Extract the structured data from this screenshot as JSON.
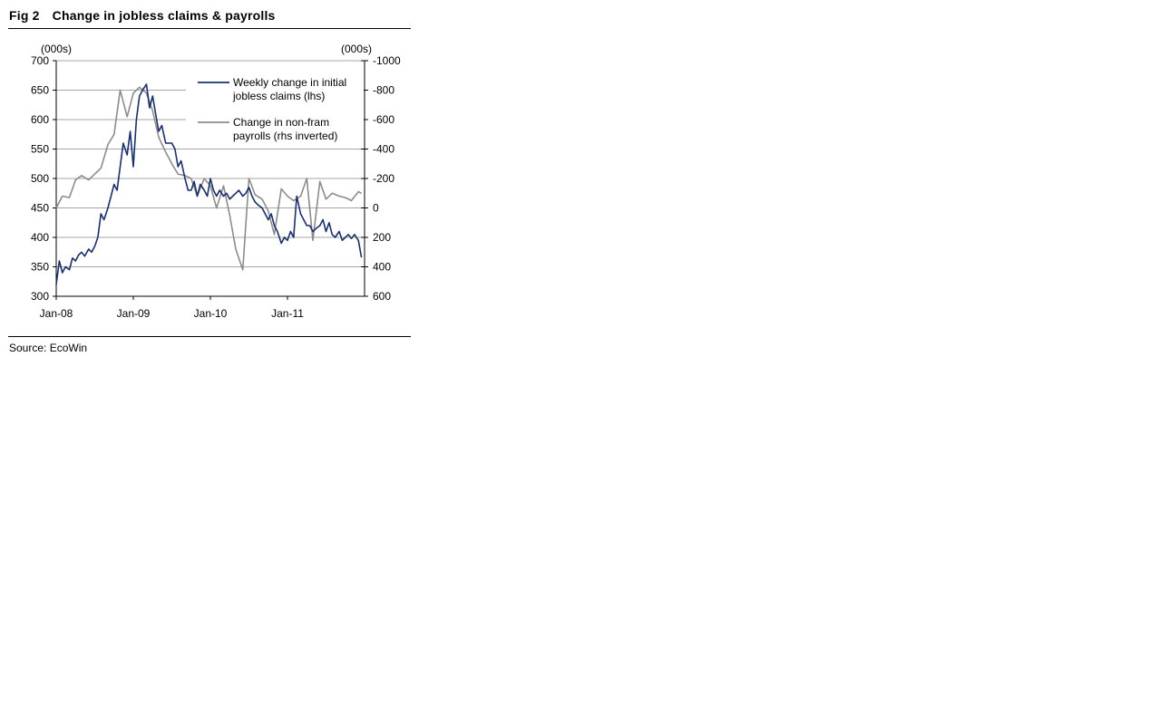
{
  "figure": {
    "number": "Fig 2",
    "title": "Change in jobless claims & payrolls",
    "source": "Source: EcoWin"
  },
  "chart_data": {
    "type": "line",
    "title": "Change in jobless claims & payrolls",
    "left_axis": {
      "unit": "(000s)",
      "min": 300,
      "max": 700,
      "ticks": [
        300,
        350,
        400,
        450,
        500,
        550,
        600,
        650,
        700
      ]
    },
    "right_axis": {
      "unit": "(000s)",
      "min": -1000,
      "max": 600,
      "inverted": true,
      "ticks": [
        -1000,
        -800,
        -600,
        -400,
        -200,
        0,
        200,
        400,
        600
      ]
    },
    "x_axis": {
      "ticks": [
        "Jan-08",
        "Jan-09",
        "Jan-10",
        "Jan-11"
      ],
      "start": "2008-01",
      "end": "2011-12"
    },
    "grid": "horizontal",
    "legend_position": "top-right",
    "series": [
      {
        "name": "Weekly change in initial jobless claims (lhs)",
        "axis": "left",
        "color": "#1a2f6b",
        "x": [
          2008.0,
          2008.04,
          2008.08,
          2008.12,
          2008.17,
          2008.21,
          2008.25,
          2008.29,
          2008.33,
          2008.37,
          2008.42,
          2008.46,
          2008.5,
          2008.54,
          2008.58,
          2008.62,
          2008.67,
          2008.71,
          2008.75,
          2008.79,
          2008.83,
          2008.87,
          2008.92,
          2008.96,
          2009.0,
          2009.04,
          2009.08,
          2009.12,
          2009.17,
          2009.21,
          2009.25,
          2009.29,
          2009.33,
          2009.37,
          2009.42,
          2009.46,
          2009.5,
          2009.54,
          2009.58,
          2009.62,
          2009.67,
          2009.71,
          2009.75,
          2009.79,
          2009.83,
          2009.87,
          2009.92,
          2009.96,
          2010.0,
          2010.04,
          2010.08,
          2010.12,
          2010.17,
          2010.21,
          2010.25,
          2010.29,
          2010.33,
          2010.37,
          2010.42,
          2010.46,
          2010.5,
          2010.54,
          2010.58,
          2010.62,
          2010.67,
          2010.71,
          2010.75,
          2010.79,
          2010.83,
          2010.87,
          2010.92,
          2010.96,
          2011.0,
          2011.04,
          2011.08,
          2011.12,
          2011.17,
          2011.21,
          2011.25,
          2011.29,
          2011.33,
          2011.37,
          2011.42,
          2011.46,
          2011.5,
          2011.54,
          2011.58,
          2011.62,
          2011.67,
          2011.71,
          2011.75,
          2011.79,
          2011.83,
          2011.87,
          2011.92,
          2011.96
        ],
        "values": [
          320,
          360,
          340,
          350,
          345,
          365,
          360,
          370,
          375,
          368,
          380,
          375,
          385,
          400,
          440,
          430,
          450,
          470,
          490,
          480,
          520,
          560,
          540,
          580,
          520,
          600,
          640,
          650,
          660,
          620,
          640,
          610,
          580,
          590,
          560,
          560,
          560,
          550,
          520,
          530,
          500,
          480,
          480,
          495,
          470,
          490,
          480,
          470,
          500,
          480,
          470,
          480,
          470,
          475,
          465,
          470,
          475,
          480,
          470,
          475,
          485,
          470,
          460,
          455,
          450,
          440,
          430,
          440,
          420,
          410,
          390,
          400,
          395,
          410,
          400,
          470,
          440,
          430,
          420,
          420,
          410,
          415,
          420,
          430,
          410,
          425,
          405,
          400,
          410,
          395,
          400,
          405,
          398,
          405,
          395,
          366
        ]
      },
      {
        "name": "Change in non-fram payrolls (rhs inverted)",
        "axis": "right",
        "color": "#8c8c8c",
        "x": [
          2008.0,
          2008.08,
          2008.17,
          2008.25,
          2008.33,
          2008.42,
          2008.5,
          2008.58,
          2008.67,
          2008.75,
          2008.83,
          2008.92,
          2009.0,
          2009.08,
          2009.17,
          2009.25,
          2009.33,
          2009.42,
          2009.5,
          2009.58,
          2009.67,
          2009.75,
          2009.83,
          2009.92,
          2010.0,
          2010.08,
          2010.17,
          2010.25,
          2010.33,
          2010.42,
          2010.5,
          2010.58,
          2010.67,
          2010.75,
          2010.83,
          2010.92,
          2011.0,
          2011.08,
          2011.17,
          2011.25,
          2011.33,
          2011.42,
          2011.5,
          2011.58,
          2011.67,
          2011.75,
          2011.83,
          2011.92,
          2011.96
        ],
        "values": [
          0,
          -80,
          -70,
          -190,
          -220,
          -190,
          -230,
          -270,
          -430,
          -500,
          -800,
          -620,
          -780,
          -820,
          -780,
          -660,
          -480,
          -380,
          -300,
          -230,
          -220,
          -200,
          -80,
          -200,
          -150,
          0,
          -150,
          50,
          280,
          420,
          -200,
          -90,
          -60,
          20,
          180,
          -130,
          -80,
          -50,
          -80,
          -200,
          220,
          -180,
          -60,
          -100,
          -80,
          -70,
          -50,
          -110,
          -100
        ]
      }
    ]
  }
}
